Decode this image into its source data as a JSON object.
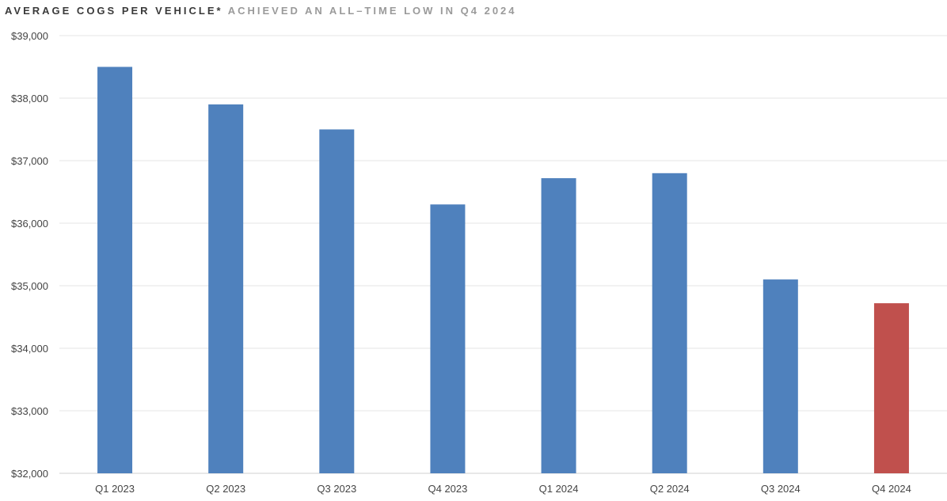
{
  "title": {
    "main": "AVERAGE COGS PER VEHICLE*",
    "sub": "ACHIEVED AN ALL–TIME LOW IN Q4 2024"
  },
  "chart_data": {
    "type": "bar",
    "categories": [
      "Q1 2023",
      "Q2 2023",
      "Q3 2023",
      "Q4 2023",
      "Q1 2024",
      "Q2 2024",
      "Q3 2024",
      "Q4 2024"
    ],
    "values": [
      38500,
      37900,
      37500,
      36300,
      36720,
      36800,
      35100,
      34720
    ],
    "ylim": [
      32000,
      39000
    ],
    "yticks": [
      32000,
      33000,
      34000,
      35000,
      36000,
      37000,
      38000,
      39000
    ],
    "ytick_labels": [
      "$32,000",
      "$33,000",
      "$34,000",
      "$35,000",
      "$36,000",
      "$37,000",
      "$38,000",
      "$39,000"
    ],
    "grid": true,
    "colors": {
      "default": "#4f81bd",
      "highlight": "#c0504d",
      "grid": "#e4e4e4",
      "axis": "#d0d0d0"
    },
    "highlight_category": "Q4 2024"
  }
}
